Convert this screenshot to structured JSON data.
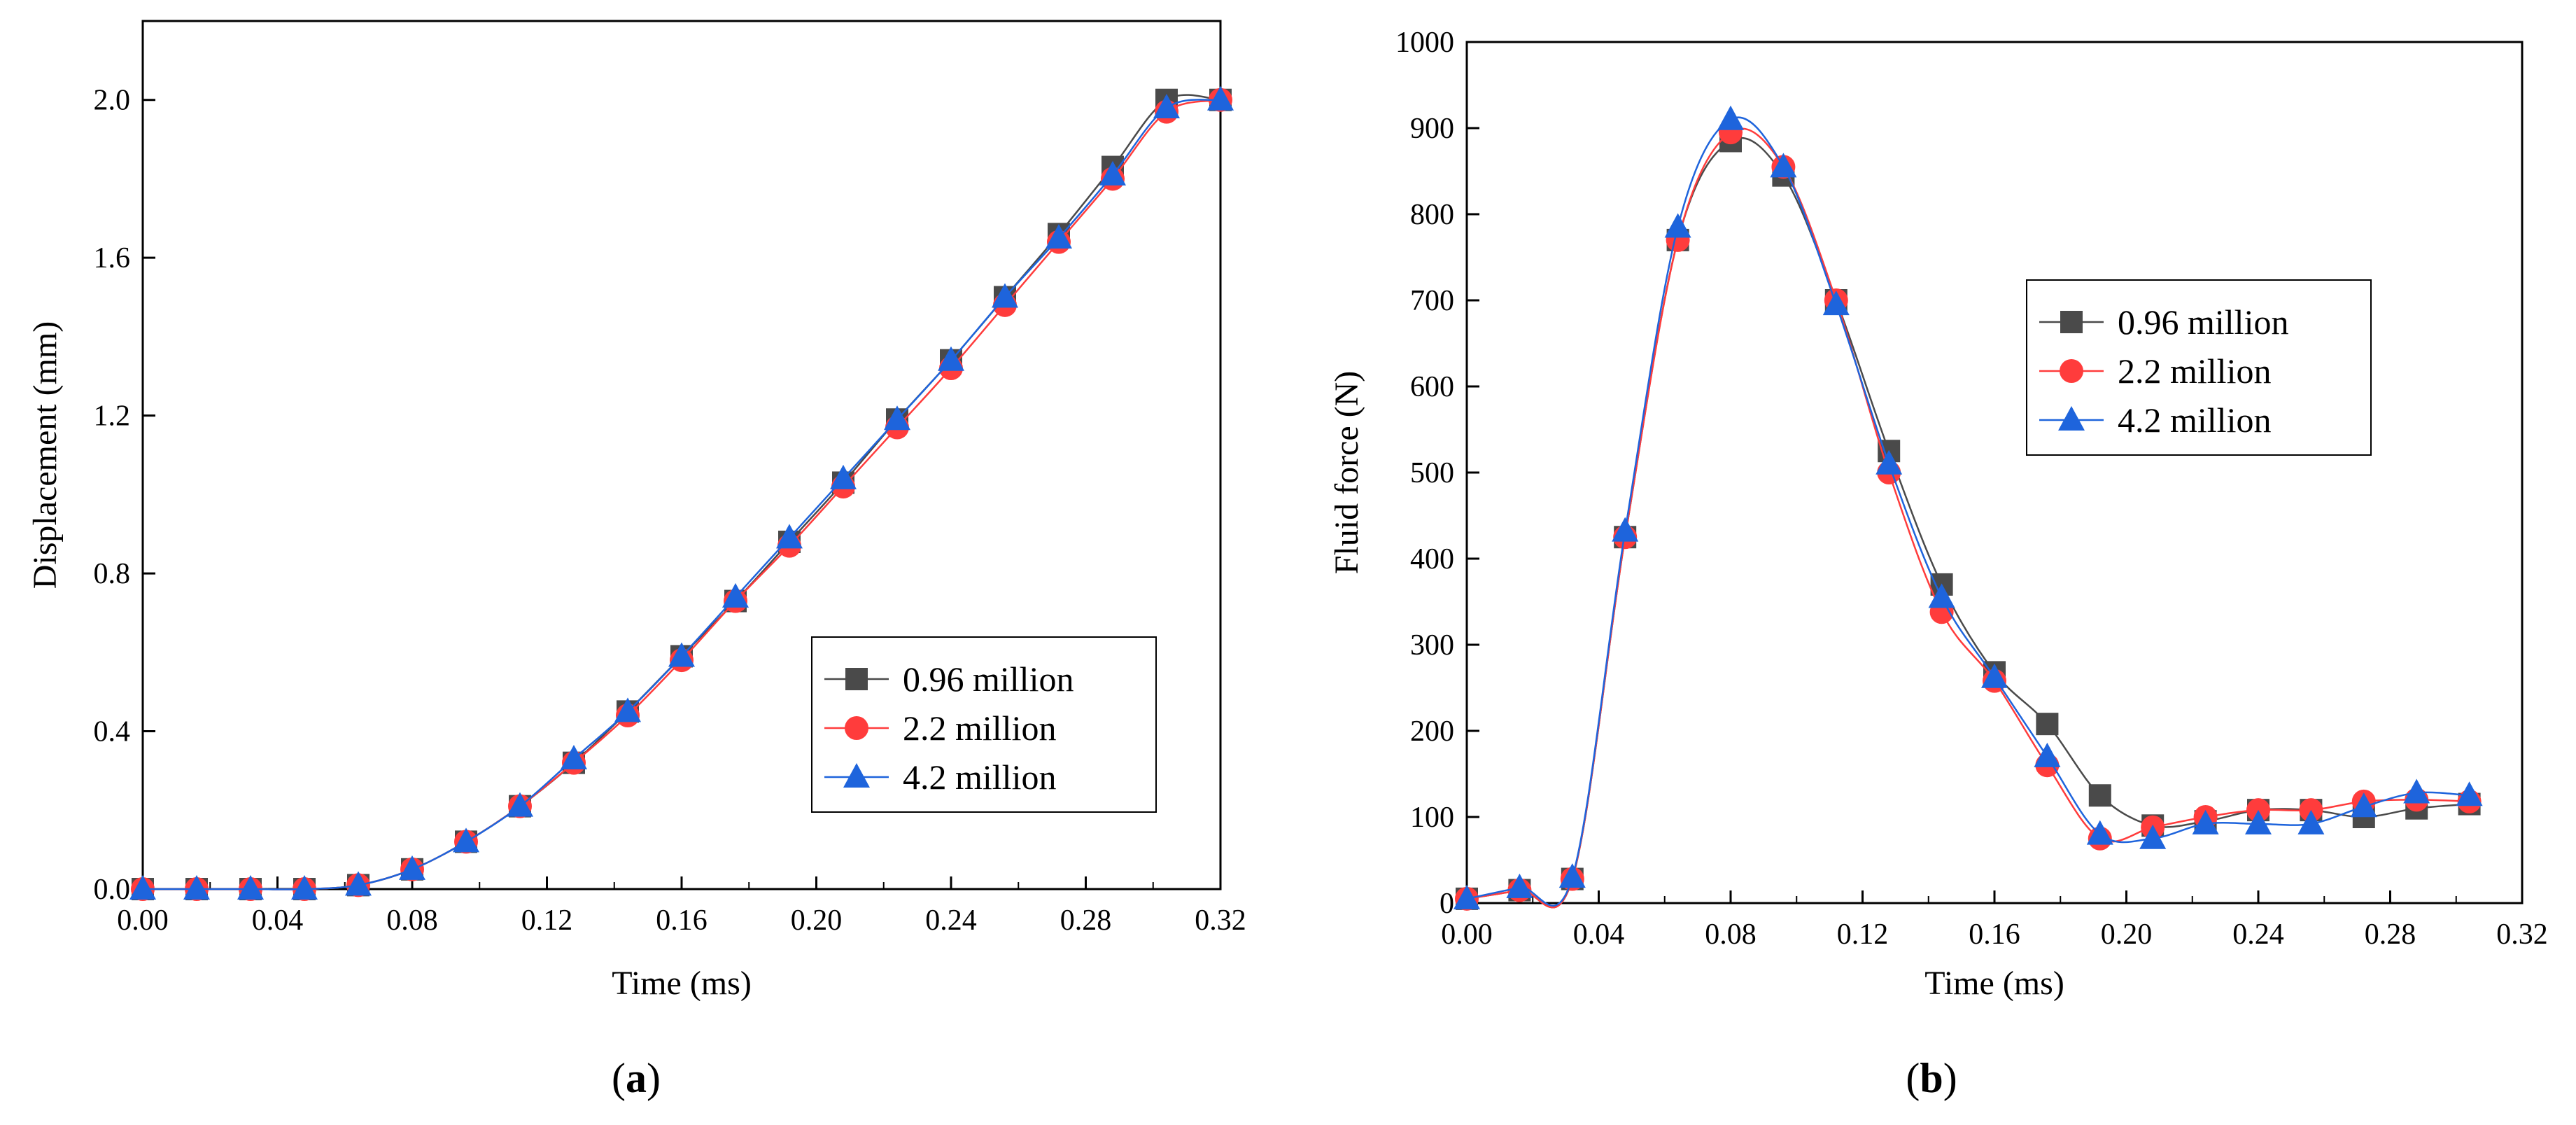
{
  "colors": {
    "series_0_96": "#4a4a4a",
    "series_2_2": "#ff3c3c",
    "series_4_2": "#1e64dc"
  },
  "chart_data": [
    {
      "id": "a",
      "type": "line",
      "panel_label": "a",
      "xlabel": "Time (ms)",
      "ylabel": "Displacement (mm)",
      "xlim": [
        0,
        0.32
      ],
      "ylim": [
        0,
        2.2
      ],
      "xticks": [
        "0.00",
        "0.04",
        "0.08",
        "0.12",
        "0.16",
        "0.20",
        "0.24",
        "0.28",
        "0.32"
      ],
      "yticks": [
        "0.0",
        "0.4",
        "0.8",
        "1.2",
        "1.6",
        "2.0"
      ],
      "legend": {
        "position": "lower-right",
        "entries": [
          "0.96 million",
          "2.2 million",
          "4.2 million"
        ]
      },
      "x": [
        0.0,
        0.016,
        0.032,
        0.048,
        0.064,
        0.08,
        0.096,
        0.112,
        0.128,
        0.144,
        0.16,
        0.176,
        0.192,
        0.208,
        0.224,
        0.24,
        0.256,
        0.272,
        0.288,
        0.304,
        0.32
      ],
      "series": [
        {
          "name": "0.96 million",
          "marker": "square",
          "values": [
            0.0,
            0.0,
            0.0,
            0.0,
            0.01,
            0.05,
            0.12,
            0.21,
            0.32,
            0.45,
            0.59,
            0.73,
            0.88,
            1.03,
            1.19,
            1.34,
            1.5,
            1.66,
            1.83,
            2.0,
            2.0
          ]
        },
        {
          "name": "2.2 million",
          "marker": "circle",
          "values": [
            0.0,
            0.0,
            0.0,
            0.0,
            0.01,
            0.05,
            0.12,
            0.21,
            0.32,
            0.44,
            0.58,
            0.73,
            0.87,
            1.02,
            1.17,
            1.32,
            1.48,
            1.64,
            1.8,
            1.97,
            2.0
          ]
        },
        {
          "name": "4.2 million",
          "marker": "triangle",
          "values": [
            0.0,
            0.0,
            0.0,
            0.0,
            0.01,
            0.05,
            0.12,
            0.21,
            0.33,
            0.45,
            0.59,
            0.74,
            0.89,
            1.04,
            1.19,
            1.34,
            1.5,
            1.65,
            1.81,
            1.98,
            2.0
          ]
        }
      ]
    },
    {
      "id": "b",
      "type": "line",
      "panel_label": "b",
      "xlabel": "Time (ms)",
      "ylabel": "Fluid force (N)",
      "xlim": [
        0,
        0.32
      ],
      "ylim": [
        0,
        1000
      ],
      "xticks": [
        "0.00",
        "0.04",
        "0.08",
        "0.12",
        "0.16",
        "0.20",
        "0.24",
        "0.28",
        "0.32"
      ],
      "yticks": [
        "0",
        "100",
        "200",
        "300",
        "400",
        "500",
        "600",
        "700",
        "800",
        "900",
        "1000"
      ],
      "legend": {
        "position": "upper-right",
        "entries": [
          "0.96 million",
          "2.2 million",
          "4.2 million"
        ]
      },
      "x": [
        0.0,
        0.016,
        0.032,
        0.048,
        0.064,
        0.08,
        0.096,
        0.112,
        0.128,
        0.144,
        0.16,
        0.176,
        0.192,
        0.208,
        0.224,
        0.24,
        0.256,
        0.272,
        0.288,
        0.304
      ],
      "series": [
        {
          "name": "0.96 million",
          "marker": "square",
          "values": [
            5,
            15,
            28,
            425,
            770,
            885,
            845,
            700,
            525,
            370,
            268,
            208,
            125,
            90,
            95,
            108,
            108,
            100,
            110,
            115
          ]
        },
        {
          "name": "2.2 million",
          "marker": "circle",
          "values": [
            5,
            15,
            28,
            425,
            770,
            895,
            855,
            700,
            500,
            338,
            258,
            160,
            75,
            88,
            100,
            108,
            108,
            118,
            120,
            118
          ]
        },
        {
          "name": "4.2 million",
          "marker": "triangle",
          "values": [
            5,
            18,
            30,
            432,
            785,
            910,
            855,
            695,
            510,
            355,
            262,
            170,
            80,
            75,
            92,
            92,
            92,
            112,
            128,
            125
          ]
        }
      ]
    }
  ]
}
